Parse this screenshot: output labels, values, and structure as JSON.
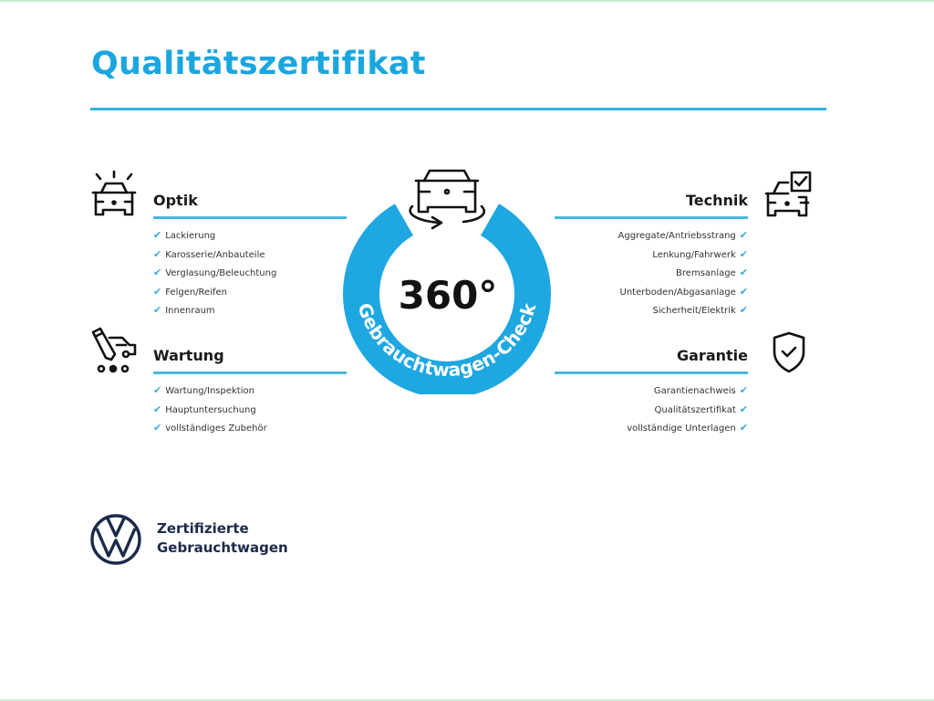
{
  "title": "Qualitätszertifikat",
  "center": {
    "number": "360°",
    "ring_text": "Gebrauchtwagen-Check",
    "icon": "car-rotate-icon"
  },
  "sections": {
    "optik": {
      "title": "Optik",
      "icon": "car-lights-icon",
      "items": [
        "Lackierung",
        "Karosserie/Anbauteile",
        "Verglasung/Beleuchtung",
        "Felgen/Reifen",
        "Innenraum"
      ]
    },
    "wartung": {
      "title": "Wartung",
      "icon": "service-tools-icon",
      "items": [
        "Wartung/Inspektion",
        "Hauptuntersuchung",
        "vollständiges Zubehör"
      ]
    },
    "technik": {
      "title": "Technik",
      "icon": "car-checkbox-icon",
      "items": [
        "Aggregate/Antriebsstrang",
        "Lenkung/Fahrwerk",
        "Bremsanlage",
        "Unterboden/Abgasanlage",
        "Sicherheit/Elektrik"
      ]
    },
    "garantie": {
      "title": "Garantie",
      "icon": "shield-check-icon",
      "items": [
        "Garantienachweis",
        "Qualitätszertifikat",
        "vollständige Unterlagen"
      ]
    }
  },
  "check_glyph": "✔",
  "brand": {
    "line1": "Zertifizierte",
    "line2": "Gebrauchtwagen",
    "logo": "vw-logo"
  },
  "colors": {
    "accent": "#1ba6e0",
    "ring": "#1ea7e1",
    "brand": "#1c2a4a",
    "check": "#3aa8d8"
  }
}
